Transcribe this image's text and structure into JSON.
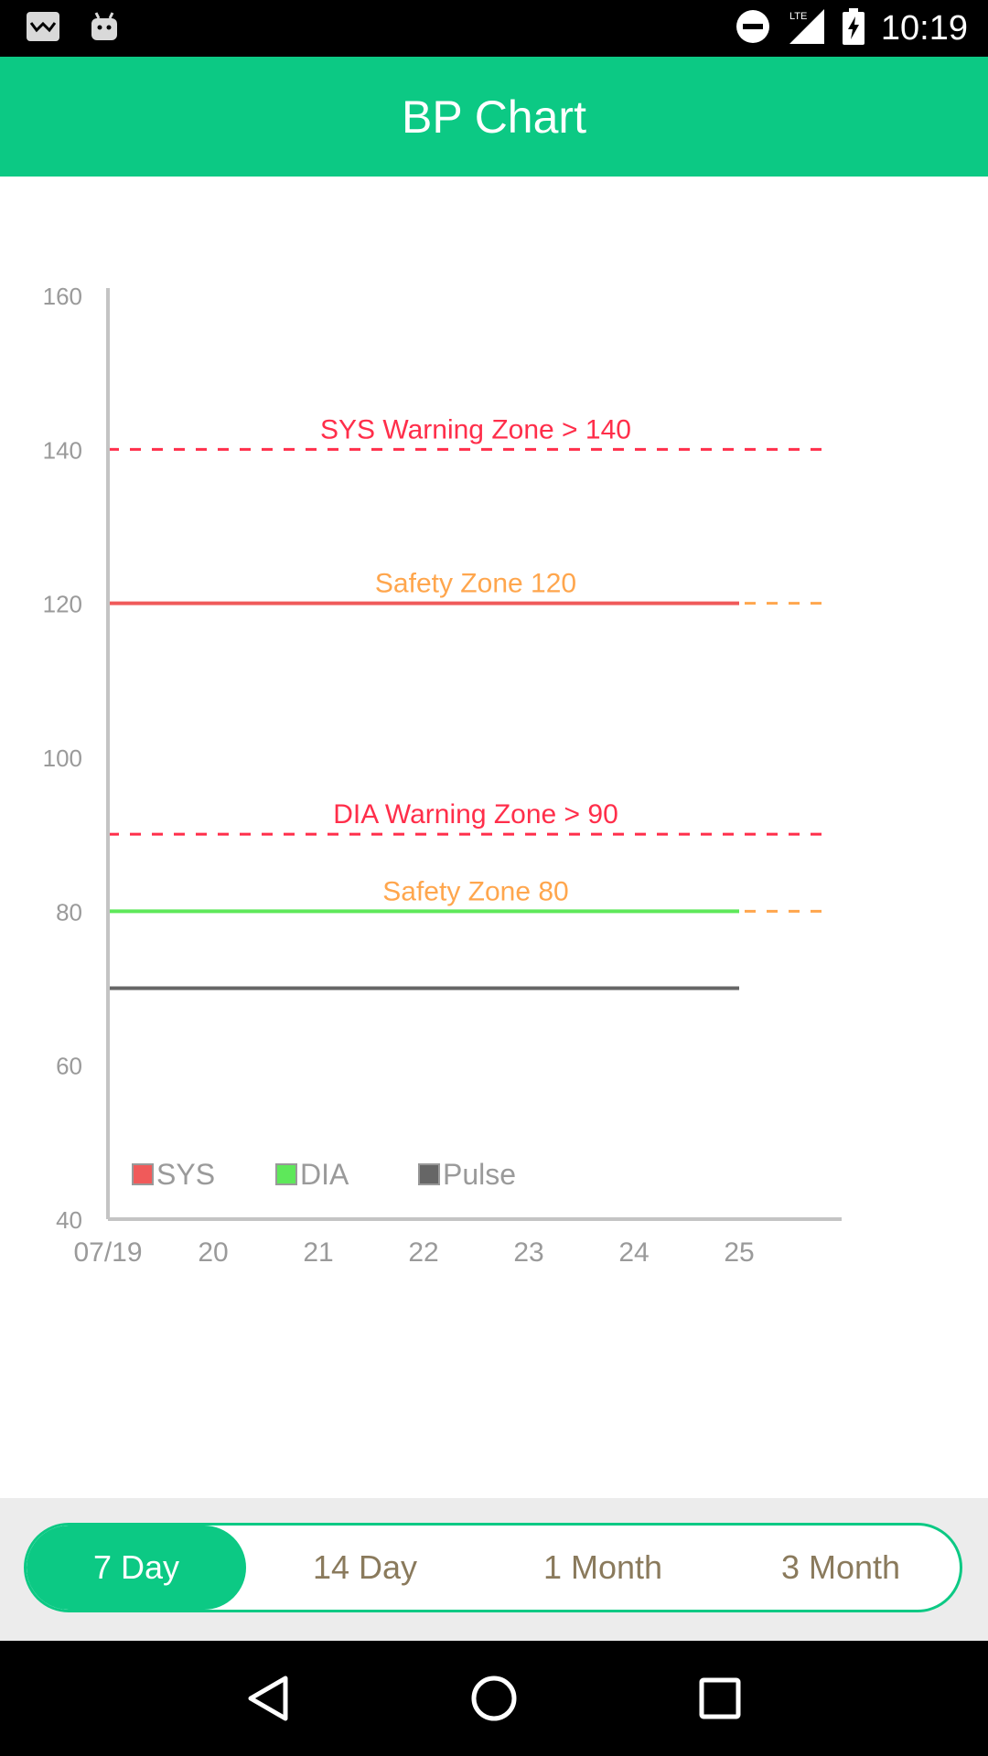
{
  "status_bar": {
    "time": "10:19",
    "left_icons": [
      "email-notification-icon",
      "android-debug-icon"
    ],
    "right_icons": [
      "do-not-disturb-icon",
      "lte-signal-icon",
      "battery-charging-icon"
    ],
    "network_label": "LTE"
  },
  "app_bar": {
    "title": "BP Chart"
  },
  "chart_data": {
    "type": "line",
    "x": [
      "07/19",
      "20",
      "21",
      "22",
      "23",
      "24",
      "25"
    ],
    "ylim": [
      40,
      160
    ],
    "y_ticks": [
      40,
      60,
      80,
      100,
      120,
      140,
      160
    ],
    "series": [
      {
        "name": "SYS",
        "color": "#f05a5a",
        "x_range": [
          "07/19",
          "25"
        ],
        "values": [
          120,
          120,
          120,
          120,
          120,
          120,
          120
        ]
      },
      {
        "name": "DIA",
        "color": "#5ee85a",
        "x_range": [
          "07/19",
          "25"
        ],
        "values": [
          80,
          80,
          80,
          80,
          80,
          80,
          80
        ]
      },
      {
        "name": "Pulse",
        "color": "#666666",
        "x_range": [
          "07/19",
          "25"
        ],
        "values": [
          70,
          70,
          70,
          70,
          70,
          70,
          70
        ]
      }
    ],
    "reference_lines": [
      {
        "label": "SYS Warning Zone > 140",
        "value": 140,
        "color": "#ff2e4a",
        "style": "dashed"
      },
      {
        "label": "Safety Zone 120",
        "value": 120,
        "color": "#ffa64d",
        "style": "dashed"
      },
      {
        "label": "DIA Warning Zone > 90",
        "value": 90,
        "color": "#ff2e4a",
        "style": "dashed"
      },
      {
        "label": "Safety Zone 80",
        "value": 80,
        "color": "#ffa64d",
        "style": "dashed"
      }
    ],
    "legend": [
      "SYS",
      "DIA",
      "Pulse"
    ],
    "legend_position": "bottom-left inside",
    "grid": false
  },
  "range_selector": {
    "options": [
      "7 Day",
      "14 Day",
      "1 Month",
      "3 Month"
    ],
    "selected": "7 Day"
  },
  "nav_bar": {
    "buttons": [
      "back-icon",
      "home-icon",
      "recents-icon"
    ]
  },
  "colors": {
    "accent": "#0cc984",
    "segment_text": "#8a7a5c"
  }
}
